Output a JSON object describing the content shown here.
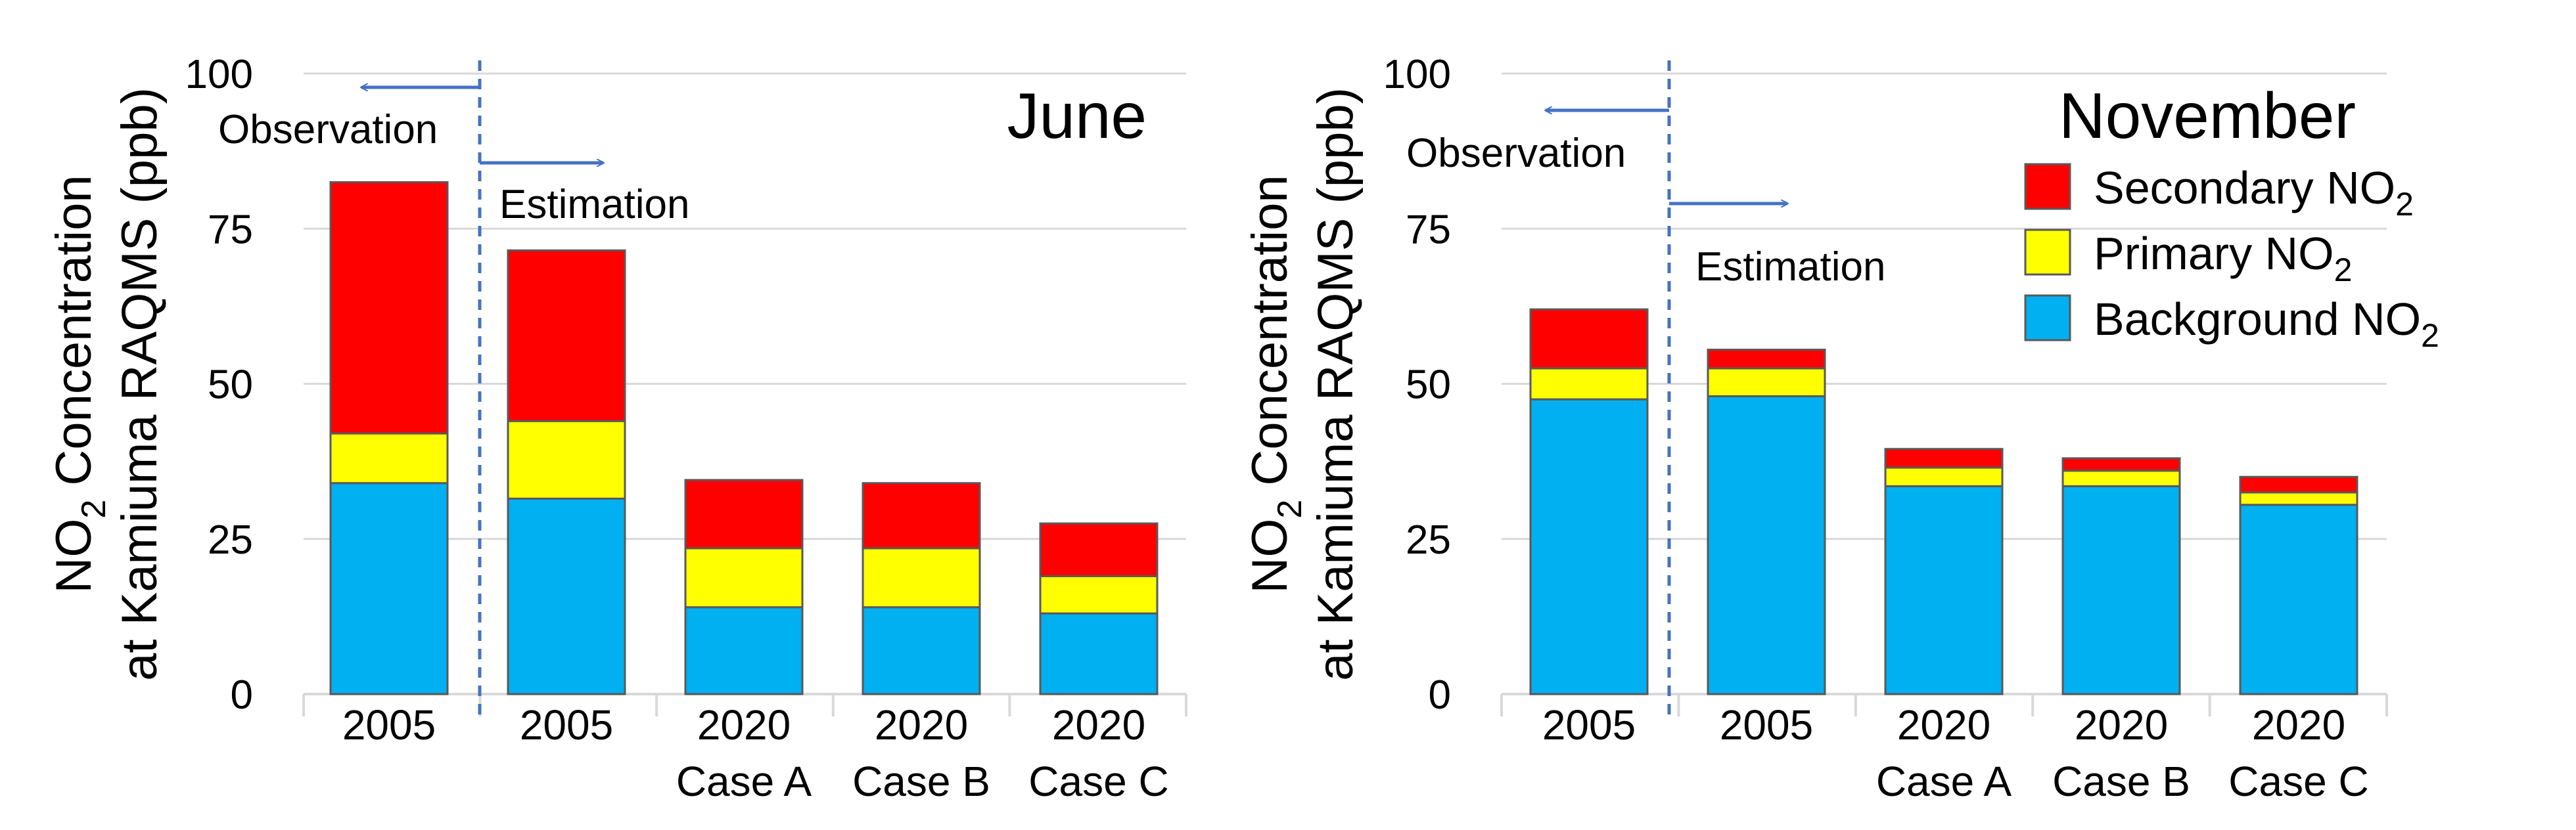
{
  "colors": {
    "secondary": "#ff0000",
    "primary": "#ffff00",
    "background": "#00b0f0",
    "grid": "#d9d9d9",
    "annotation": "#4472c4"
  },
  "chart_data": [
    {
      "type": "bar",
      "stacked": true,
      "title": "June",
      "ylabel_line1": "NO",
      "ylabel_line1_sub": "2",
      "ylabel_line1_rest": " Concentration",
      "ylabel_line2": "at Kamiuma RAQMS (ppb)",
      "ylim": [
        0,
        100
      ],
      "yticks": [
        "0",
        "25",
        "50",
        "75",
        "100"
      ],
      "categories": [
        {
          "line1": "2005",
          "line2": ""
        },
        {
          "line1": "2005",
          "line2": ""
        },
        {
          "line1": "2020",
          "line2": "Case A"
        },
        {
          "line1": "2020",
          "line2": "Case B"
        },
        {
          "line1": "2020",
          "line2": "Case C"
        }
      ],
      "series": [
        {
          "key": "background",
          "name": "Background NO2",
          "values": [
            34,
            31.5,
            14,
            14,
            13
          ]
        },
        {
          "key": "primary",
          "name": "Primary NO2",
          "values": [
            8,
            12.5,
            9.5,
            9.5,
            6
          ]
        },
        {
          "key": "secondary",
          "name": "Secondary NO2",
          "values": [
            40.5,
            27.5,
            11,
            10.5,
            8.5
          ]
        }
      ],
      "annotations": {
        "observation": "Observation",
        "estimation": "Estimation"
      }
    },
    {
      "type": "bar",
      "stacked": true,
      "title": "November",
      "ylabel_line1": "NO",
      "ylabel_line1_sub": "2",
      "ylabel_line1_rest": " Concentration",
      "ylabel_line2": "at Kamiuma RAQMS (ppb)",
      "ylim": [
        0,
        100
      ],
      "yticks": [
        "0",
        "25",
        "50",
        "75",
        "100"
      ],
      "categories": [
        {
          "line1": "2005",
          "line2": ""
        },
        {
          "line1": "2005",
          "line2": ""
        },
        {
          "line1": "2020",
          "line2": "Case A"
        },
        {
          "line1": "2020",
          "line2": "Case B"
        },
        {
          "line1": "2020",
          "line2": "Case C"
        }
      ],
      "series": [
        {
          "key": "background",
          "name": "Background NO2",
          "values": [
            47.5,
            48,
            33.5,
            33.5,
            30.5
          ]
        },
        {
          "key": "primary",
          "name": "Primary NO2",
          "values": [
            5,
            4.5,
            3,
            2.5,
            2
          ]
        },
        {
          "key": "secondary",
          "name": "Secondary NO2",
          "values": [
            9.5,
            3,
            3,
            2,
            2.5
          ]
        }
      ],
      "annotations": {
        "observation": "Observation",
        "estimation": "Estimation"
      },
      "legend": [
        {
          "key": "secondary",
          "text": "Secondary NO",
          "sub": "2"
        },
        {
          "key": "primary",
          "text": "Primary NO",
          "sub": "2"
        },
        {
          "key": "background",
          "text": "Background NO",
          "sub": "2"
        }
      ]
    }
  ]
}
